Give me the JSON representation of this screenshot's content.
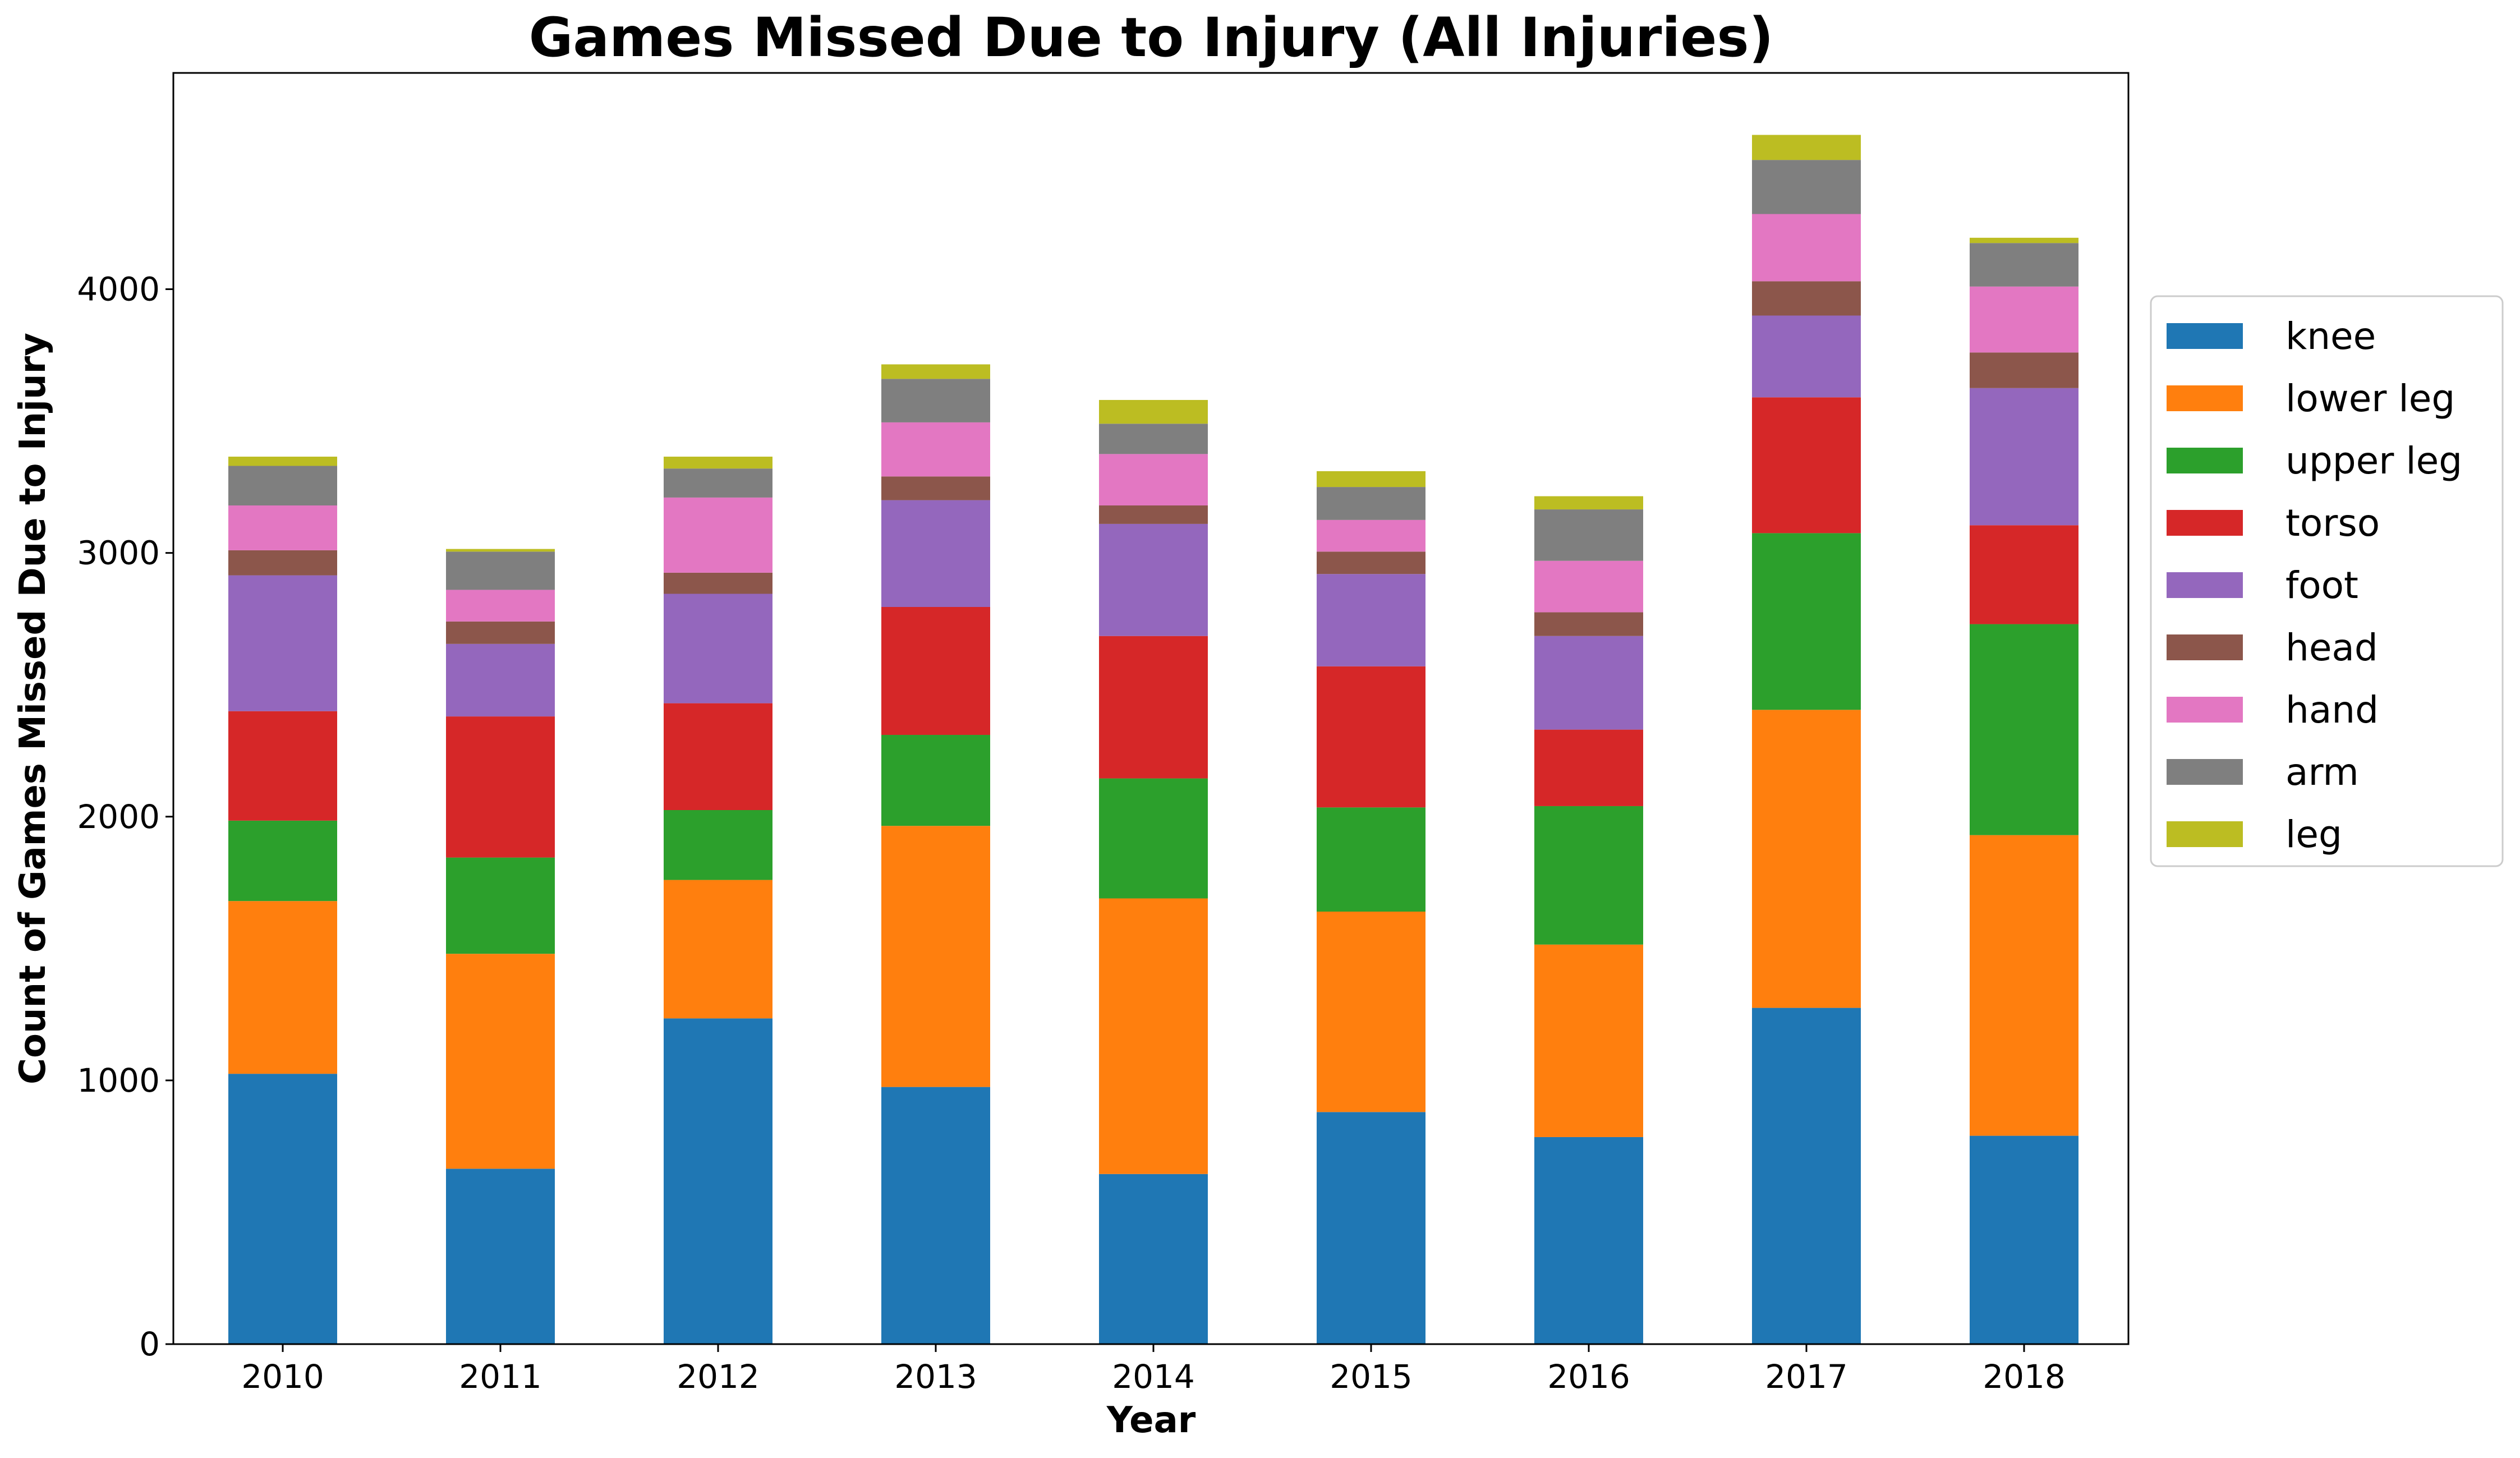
{
  "chart_data": {
    "type": "bar",
    "stacked": true,
    "title": "Games Missed Due to Injury (All Injuries)",
    "xlabel": "Year",
    "ylabel": "Count of Games Missed Due to Injury",
    "categories": [
      "2010",
      "2011",
      "2012",
      "2013",
      "2014",
      "2015",
      "2016",
      "2017",
      "2018"
    ],
    "ylim": [
      0,
      4820
    ],
    "yticks": [
      0,
      1000,
      2000,
      3000,
      4000
    ],
    "grid": false,
    "legend_position": "right",
    "series": [
      {
        "name": "knee",
        "color": "#1f77b4",
        "values": [
          1025,
          665,
          1235,
          975,
          645,
          880,
          785,
          1275,
          790
        ]
      },
      {
        "name": "lower leg",
        "color": "#ff7f0e",
        "values": [
          655,
          815,
          525,
          990,
          1045,
          760,
          730,
          1130,
          1140
        ]
      },
      {
        "name": "upper leg",
        "color": "#2ca02c",
        "values": [
          305,
          365,
          265,
          345,
          455,
          395,
          525,
          670,
          800
        ]
      },
      {
        "name": "torso",
        "color": "#d62728",
        "values": [
          415,
          535,
          405,
          485,
          540,
          535,
          290,
          515,
          375
        ]
      },
      {
        "name": "foot",
        "color": "#9467bd",
        "values": [
          515,
          275,
          415,
          405,
          425,
          350,
          355,
          310,
          520
        ]
      },
      {
        "name": "head",
        "color": "#8c564b",
        "values": [
          95,
          85,
          80,
          90,
          70,
          85,
          90,
          130,
          135
        ]
      },
      {
        "name": "hand",
        "color": "#e377c2",
        "values": [
          170,
          120,
          285,
          205,
          195,
          120,
          195,
          255,
          250
        ]
      },
      {
        "name": "arm",
        "color": "#7f7f7f",
        "values": [
          150,
          145,
          110,
          165,
          115,
          125,
          195,
          205,
          165
        ]
      },
      {
        "name": "leg",
        "color": "#bcbd22",
        "values": [
          35,
          10,
          45,
          55,
          90,
          60,
          50,
          95,
          20
        ]
      }
    ]
  }
}
